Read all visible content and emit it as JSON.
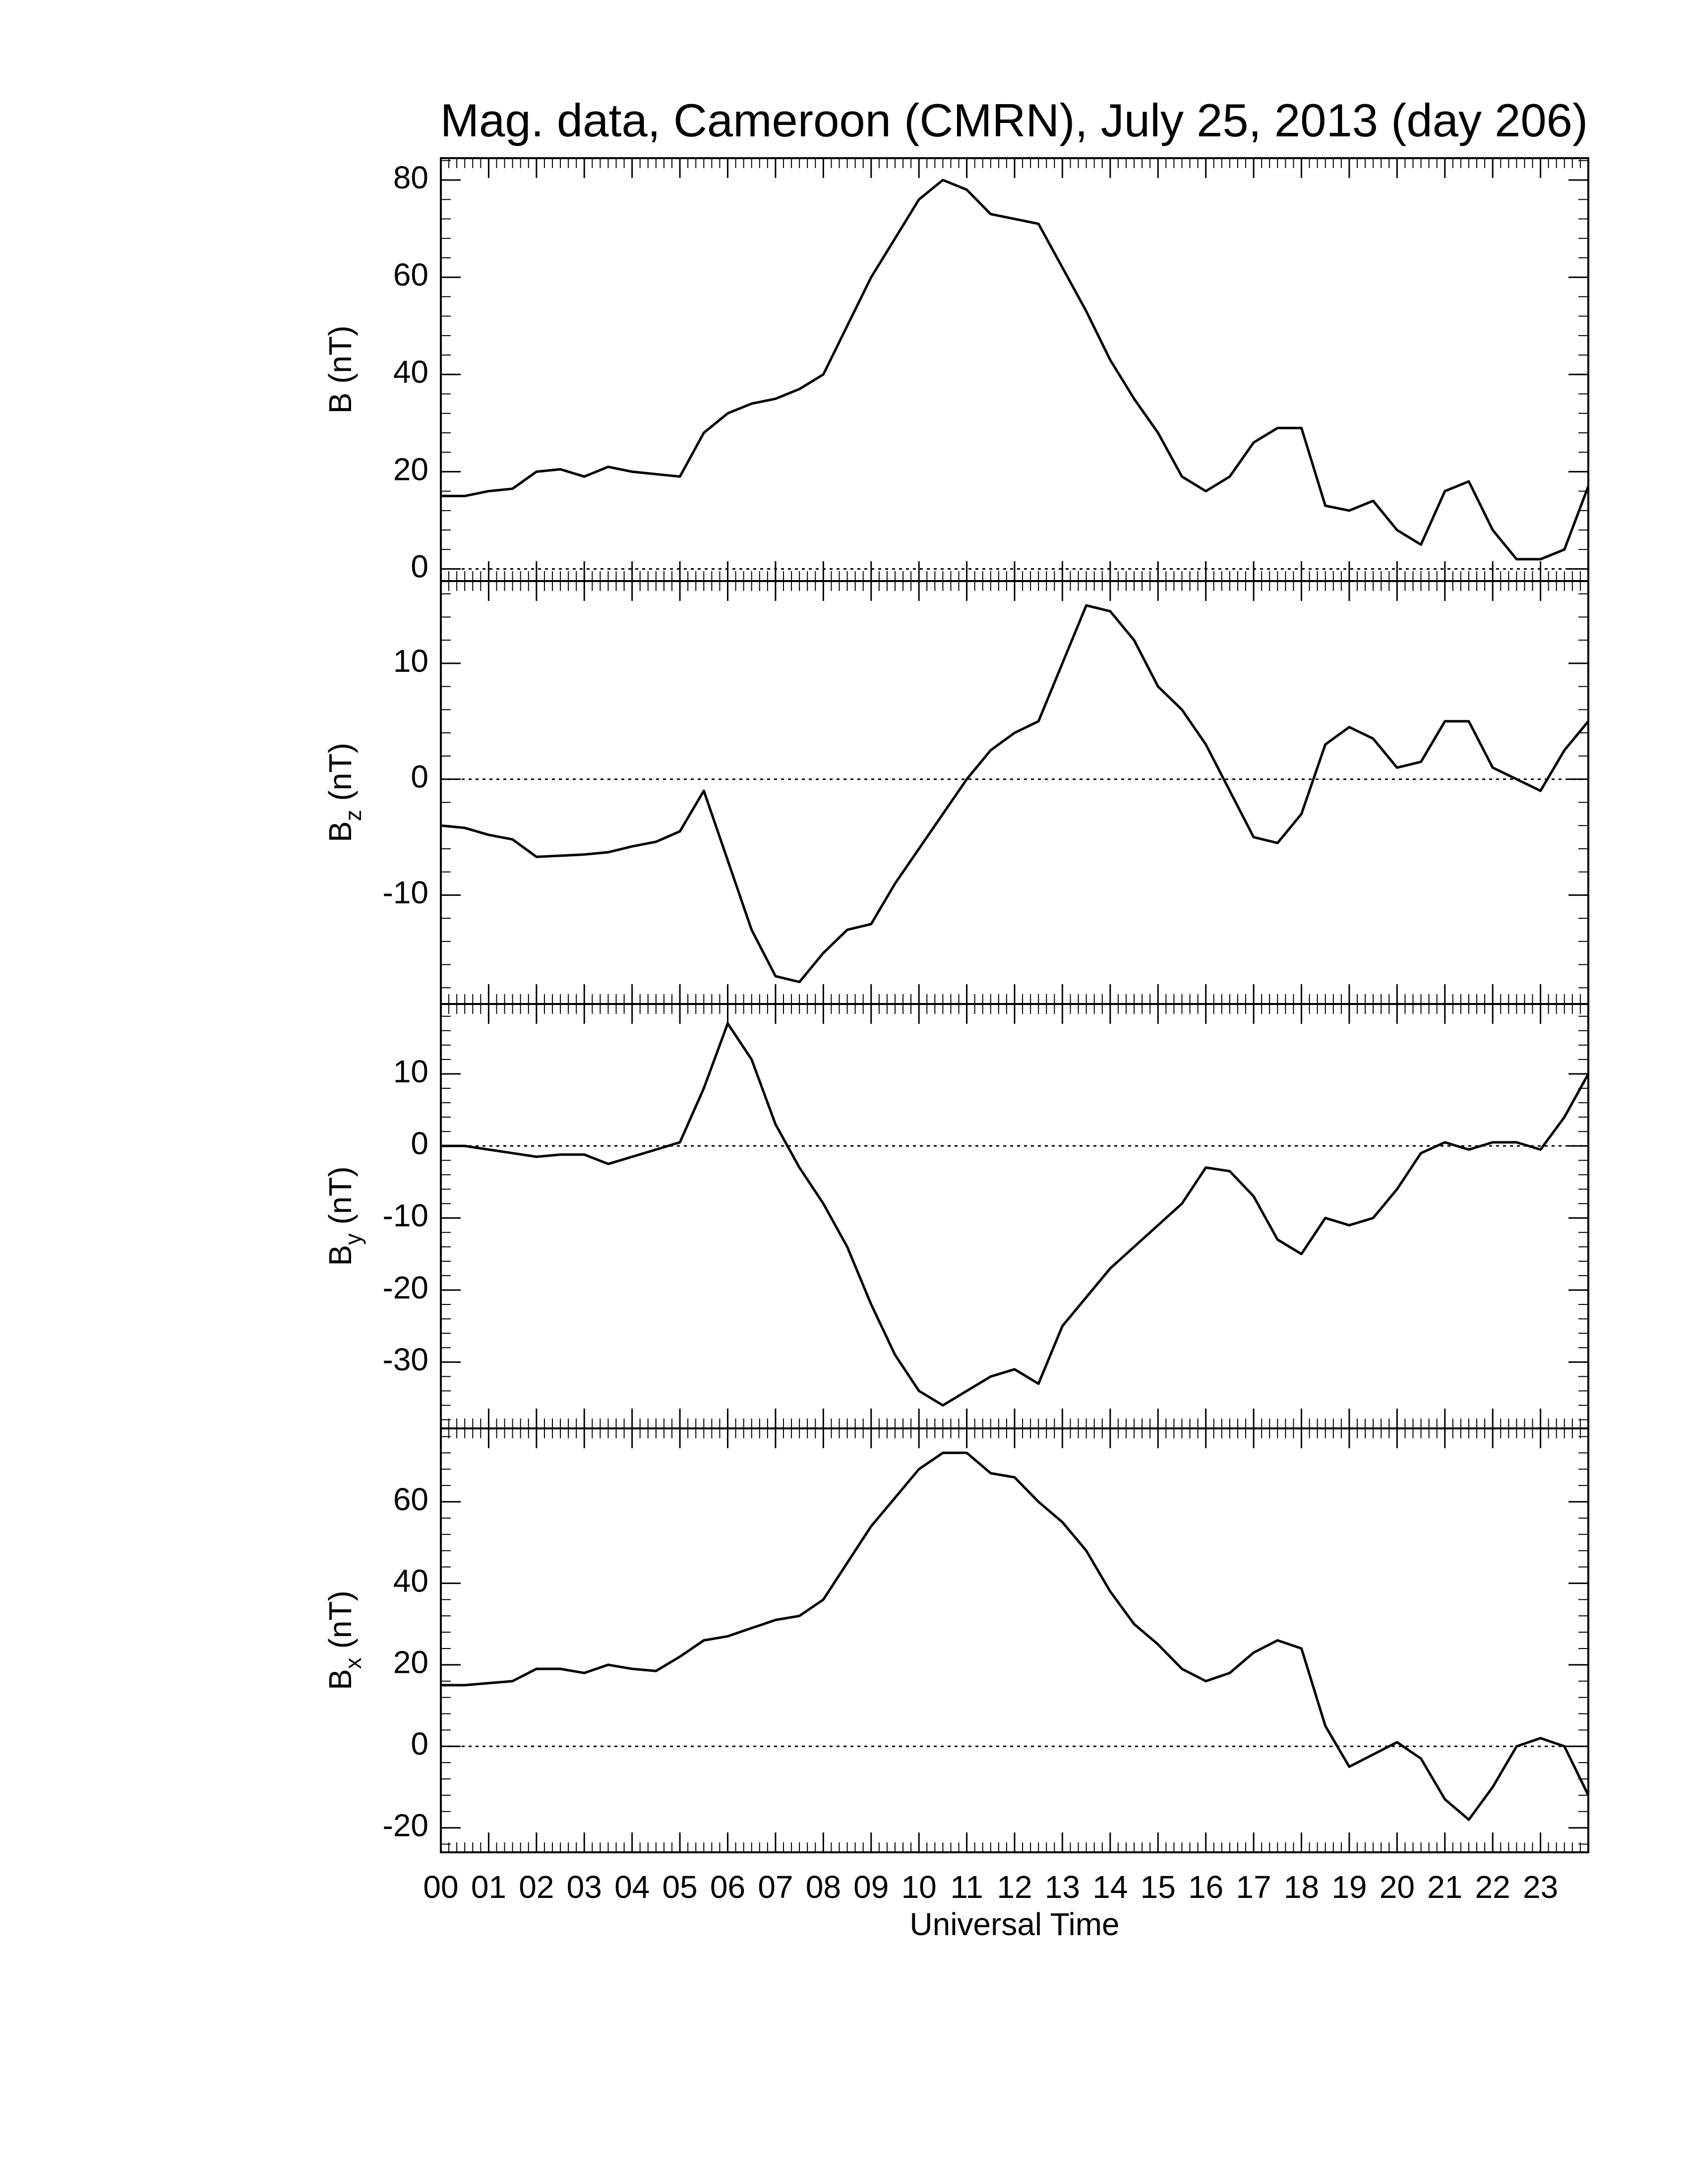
{
  "chart_data": [
    {
      "type": "line",
      "title": "Mag. data, Cameroon (CMRN), July 25, 2013 (day 206)",
      "ylabel": "B",
      "ylabel_unit": "(nT)",
      "x": [
        0,
        0.5,
        1,
        1.5,
        2,
        2.5,
        3,
        3.5,
        4,
        4.5,
        5,
        5.5,
        6,
        6.5,
        7,
        7.5,
        8,
        8.5,
        9,
        9.5,
        10,
        10.5,
        11,
        11.5,
        12,
        12.5,
        13,
        13.5,
        14,
        14.5,
        15,
        15.5,
        16,
        16.5,
        17,
        17.5,
        18,
        18.5,
        19,
        19.5,
        20,
        20.5,
        21,
        21.5,
        22,
        22.5,
        23,
        23.5,
        24
      ],
      "series": [
        {
          "name": "B",
          "color": "#000000",
          "values": [
            15,
            15,
            16,
            16.5,
            20,
            20.5,
            19,
            21,
            20,
            19.5,
            19,
            28,
            32,
            34,
            35,
            37,
            40,
            50,
            60,
            68,
            76,
            80,
            78,
            73,
            72,
            71,
            62,
            53,
            43,
            35,
            28,
            19,
            16,
            19,
            26,
            29,
            29,
            13,
            12,
            14,
            8,
            5,
            16,
            18,
            8,
            2,
            2,
            4,
            17
          ]
        }
      ],
      "xlim": [
        0,
        24
      ],
      "ylim": [
        -2.5,
        84.5
      ],
      "yticks": [
        0,
        20,
        40,
        60,
        80
      ]
    },
    {
      "type": "line",
      "ylabel": "B",
      "ylabel_sub": "z",
      "ylabel_unit": "(nT)",
      "x": [
        0,
        0.5,
        1,
        1.5,
        2,
        2.5,
        3,
        3.5,
        4,
        4.5,
        5,
        5.5,
        6,
        6.5,
        7,
        7.5,
        8,
        8.5,
        9,
        9.5,
        10,
        10.5,
        11,
        11.5,
        12,
        12.5,
        13,
        13.5,
        14,
        14.5,
        15,
        15.5,
        16,
        16.5,
        17,
        17.5,
        18,
        18.5,
        19,
        19.5,
        20,
        20.5,
        21,
        21.5,
        22,
        22.5,
        23,
        23.5,
        24
      ],
      "series": [
        {
          "name": "Bz",
          "color": "#000000",
          "values": [
            -4,
            -4.2,
            -4.8,
            -5.2,
            -6.7,
            -6.6,
            -6.5,
            -6.3,
            -5.8,
            -5.4,
            -4.5,
            -1,
            -7,
            -13,
            -17,
            -17.5,
            -15,
            -13,
            -12.5,
            -9,
            -6,
            -3,
            0,
            2.5,
            4,
            5,
            10,
            15,
            14.5,
            12,
            8,
            6,
            3,
            -1,
            -5,
            -5.5,
            -3,
            3,
            4.5,
            3.5,
            1,
            1.5,
            5,
            5,
            1,
            0,
            -1,
            2.5,
            5
          ]
        }
      ],
      "xlim": [
        0,
        24
      ],
      "ylim": [
        -19.4,
        17.1
      ],
      "yticks": [
        -10,
        0,
        10
      ]
    },
    {
      "type": "line",
      "ylabel": "B",
      "ylabel_sub": "y",
      "ylabel_unit": "(nT)",
      "x": [
        0,
        0.5,
        1,
        1.5,
        2,
        2.5,
        3,
        3.5,
        4,
        4.5,
        5,
        5.5,
        6,
        6.5,
        7,
        7.5,
        8,
        8.5,
        9,
        9.5,
        10,
        10.5,
        11,
        11.5,
        12,
        12.5,
        13,
        13.5,
        14,
        14.5,
        15,
        15.5,
        16,
        16.5,
        17,
        17.5,
        18,
        18.5,
        19,
        19.5,
        20,
        20.5,
        21,
        21.5,
        22,
        22.5,
        23,
        23.5,
        24
      ],
      "series": [
        {
          "name": "By",
          "color": "#000000",
          "values": [
            0,
            0,
            -0.5,
            -1,
            -1.5,
            -1.2,
            -1.2,
            -2.5,
            -1.5,
            -0.5,
            0.5,
            8,
            17,
            12,
            3,
            -3,
            -8,
            -14,
            -22,
            -29,
            -34,
            -36,
            -34,
            -32,
            -31,
            -33,
            -25,
            -21,
            -17,
            -14,
            -11,
            -8,
            -3,
            -3.5,
            -7,
            -13,
            -15,
            -10,
            -11,
            -10,
            -6,
            -1,
            0.5,
            -0.5,
            0.5,
            0.5,
            -0.5,
            4,
            10
          ]
        }
      ],
      "xlim": [
        0,
        24
      ],
      "ylim": [
        -39.2,
        19.7
      ],
      "yticks": [
        -30,
        -20,
        -10,
        0,
        10
      ]
    },
    {
      "type": "line",
      "ylabel": "B",
      "ylabel_sub": "x",
      "ylabel_unit": "(nT)",
      "xlabel": "Universal Time",
      "x": [
        0,
        0.5,
        1,
        1.5,
        2,
        2.5,
        3,
        3.5,
        4,
        4.5,
        5,
        5.5,
        6,
        6.5,
        7,
        7.5,
        8,
        8.5,
        9,
        9.5,
        10,
        10.5,
        11,
        11.5,
        12,
        12.5,
        13,
        13.5,
        14,
        14.5,
        15,
        15.5,
        16,
        16.5,
        17,
        17.5,
        18,
        18.5,
        19,
        19.5,
        20,
        20.5,
        21,
        21.5,
        22,
        22.5,
        23,
        23.5,
        24
      ],
      "series": [
        {
          "name": "Bx",
          "color": "#000000",
          "values": [
            15,
            15,
            15.5,
            16,
            19,
            19,
            18,
            20,
            19,
            18.5,
            22,
            26,
            27,
            29,
            31,
            32,
            36,
            45,
            54,
            61,
            68,
            72,
            72,
            67,
            66,
            60,
            55,
            48,
            38,
            30,
            25,
            19,
            16,
            18,
            23,
            26,
            24,
            5,
            -5,
            -2,
            1,
            -3,
            -13,
            -18,
            -10,
            0,
            2,
            0,
            -12
          ]
        }
      ],
      "xlim": [
        0,
        24
      ],
      "ylim": [
        -26,
        78
      ],
      "yticks": [
        -20,
        0,
        20,
        40,
        60
      ],
      "xticks": [
        {
          "value": 0,
          "label": "00"
        },
        {
          "value": 1,
          "label": "01"
        },
        {
          "value": 2,
          "label": "02"
        },
        {
          "value": 3,
          "label": "03"
        },
        {
          "value": 4,
          "label": "04"
        },
        {
          "value": 5,
          "label": "05"
        },
        {
          "value": 6,
          "label": "06"
        },
        {
          "value": 7,
          "label": "07"
        },
        {
          "value": 8,
          "label": "08"
        },
        {
          "value": 9,
          "label": "09"
        },
        {
          "value": 10,
          "label": "10"
        },
        {
          "value": 11,
          "label": "11"
        },
        {
          "value": 12,
          "label": "12"
        },
        {
          "value": 13,
          "label": "13"
        },
        {
          "value": 14,
          "label": "14"
        },
        {
          "value": 15,
          "label": "15"
        },
        {
          "value": 16,
          "label": "16"
        },
        {
          "value": 17,
          "label": "17"
        },
        {
          "value": 18,
          "label": "18"
        },
        {
          "value": 19,
          "label": "19"
        },
        {
          "value": 20,
          "label": "20"
        },
        {
          "value": 21,
          "label": "21"
        },
        {
          "value": 22,
          "label": "22"
        },
        {
          "value": 23,
          "label": "23"
        }
      ]
    }
  ]
}
